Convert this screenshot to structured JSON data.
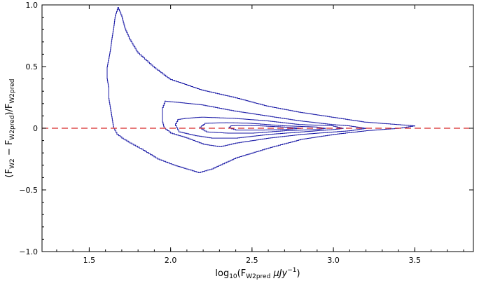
{
  "chart_data": {
    "type": "line",
    "title": "",
    "xlabel": {
      "base": "log",
      "base_sub": "10",
      "open": "(F",
      "sub": "W2pred",
      "unit": " μJy",
      "sup": "−1",
      "close": ")"
    },
    "ylabel": {
      "p1": "(F",
      "s1": "W2",
      "p2": " − F",
      "s2": "W2pred",
      "p3": ")/F",
      "s3": "W2pred"
    },
    "xlim": [
      1.21,
      3.86
    ],
    "ylim": [
      -1.0,
      1.0
    ],
    "x_ticks": [
      1.5,
      2.0,
      2.5,
      3.0,
      3.5
    ],
    "x_tick_labels": [
      "1.5",
      "2.0",
      "2.5",
      "3.0",
      "3.5"
    ],
    "y_ticks": [
      -1.0,
      -0.5,
      0,
      0.5,
      1.0
    ],
    "y_tick_labels": [
      "−1.0",
      "−0.5",
      "0",
      "0.5",
      "1.0"
    ],
    "grid": false,
    "reference_line": {
      "y": 0,
      "style": "dashed",
      "color": "#d62728"
    },
    "contour_color": "#1a1aa6",
    "contours": [
      {
        "level": 1,
        "points": [
          [
            1.68,
            0.98
          ],
          [
            1.66,
            0.9
          ],
          [
            1.65,
            0.8
          ],
          [
            1.64,
            0.72
          ],
          [
            1.63,
            0.62
          ],
          [
            1.62,
            0.55
          ],
          [
            1.61,
            0.48
          ],
          [
            1.61,
            0.4
          ],
          [
            1.62,
            0.32
          ],
          [
            1.62,
            0.24
          ],
          [
            1.63,
            0.16
          ],
          [
            1.64,
            0.08
          ],
          [
            1.65,
            0.0
          ],
          [
            1.67,
            -0.05
          ],
          [
            1.7,
            -0.08
          ],
          [
            1.75,
            -0.12
          ],
          [
            1.82,
            -0.17
          ],
          [
            1.92,
            -0.25
          ],
          [
            2.02,
            -0.3
          ],
          [
            2.12,
            -0.34
          ],
          [
            2.17,
            -0.36
          ],
          [
            2.25,
            -0.33
          ],
          [
            2.4,
            -0.24
          ],
          [
            2.6,
            -0.16
          ],
          [
            2.8,
            -0.09
          ],
          [
            3.0,
            -0.05
          ],
          [
            3.2,
            -0.02
          ],
          [
            3.4,
            0.0
          ],
          [
            3.5,
            0.02
          ],
          [
            3.4,
            0.03
          ],
          [
            3.2,
            0.05
          ],
          [
            3.0,
            0.09
          ],
          [
            2.8,
            0.13
          ],
          [
            2.6,
            0.18
          ],
          [
            2.4,
            0.25
          ],
          [
            2.2,
            0.31
          ],
          [
            2.0,
            0.4
          ],
          [
            1.9,
            0.5
          ],
          [
            1.8,
            0.62
          ],
          [
            1.75,
            0.73
          ],
          [
            1.72,
            0.82
          ],
          [
            1.7,
            0.92
          ],
          [
            1.68,
            0.98
          ]
        ]
      },
      {
        "level": 2,
        "points": [
          [
            1.97,
            0.22
          ],
          [
            1.95,
            0.15
          ],
          [
            1.95,
            0.05
          ],
          [
            1.96,
            0.0
          ],
          [
            2.0,
            -0.04
          ],
          [
            2.1,
            -0.08
          ],
          [
            2.2,
            -0.13
          ],
          [
            2.3,
            -0.15
          ],
          [
            2.4,
            -0.12
          ],
          [
            2.6,
            -0.08
          ],
          [
            2.8,
            -0.05
          ],
          [
            3.0,
            -0.03
          ],
          [
            3.1,
            -0.02
          ],
          [
            3.2,
            0.0
          ],
          [
            3.1,
            0.02
          ],
          [
            3.0,
            0.03
          ],
          [
            2.8,
            0.06
          ],
          [
            2.6,
            0.1
          ],
          [
            2.4,
            0.14
          ],
          [
            2.2,
            0.19
          ],
          [
            2.05,
            0.21
          ],
          [
            1.97,
            0.22
          ]
        ]
      },
      {
        "level": 3,
        "points": [
          [
            2.05,
            0.07
          ],
          [
            2.03,
            0.02
          ],
          [
            2.05,
            -0.03
          ],
          [
            2.15,
            -0.06
          ],
          [
            2.25,
            -0.08
          ],
          [
            2.4,
            -0.08
          ],
          [
            2.6,
            -0.05
          ],
          [
            2.8,
            -0.03
          ],
          [
            3.0,
            -0.01
          ],
          [
            3.06,
            0.0
          ],
          [
            3.0,
            0.02
          ],
          [
            2.8,
            0.03
          ],
          [
            2.6,
            0.06
          ],
          [
            2.4,
            0.08
          ],
          [
            2.2,
            0.09
          ],
          [
            2.1,
            0.08
          ],
          [
            2.05,
            0.07
          ]
        ]
      },
      {
        "level": 4,
        "points": [
          [
            2.22,
            0.04
          ],
          [
            2.18,
            0.0
          ],
          [
            2.22,
            -0.03
          ],
          [
            2.35,
            -0.04
          ],
          [
            2.5,
            -0.04
          ],
          [
            2.7,
            -0.02
          ],
          [
            2.9,
            -0.01
          ],
          [
            2.95,
            0.0
          ],
          [
            2.9,
            0.01
          ],
          [
            2.7,
            0.02
          ],
          [
            2.5,
            0.04
          ],
          [
            2.35,
            0.045
          ],
          [
            2.22,
            0.04
          ]
        ]
      },
      {
        "level": 5,
        "points": [
          [
            2.38,
            0.02
          ],
          [
            2.36,
            0.0
          ],
          [
            2.4,
            -0.015
          ],
          [
            2.55,
            -0.015
          ],
          [
            2.7,
            -0.01
          ],
          [
            2.8,
            0.0
          ],
          [
            2.7,
            0.01
          ],
          [
            2.55,
            0.02
          ],
          [
            2.42,
            0.022
          ],
          [
            2.38,
            0.02
          ]
        ]
      }
    ]
  }
}
